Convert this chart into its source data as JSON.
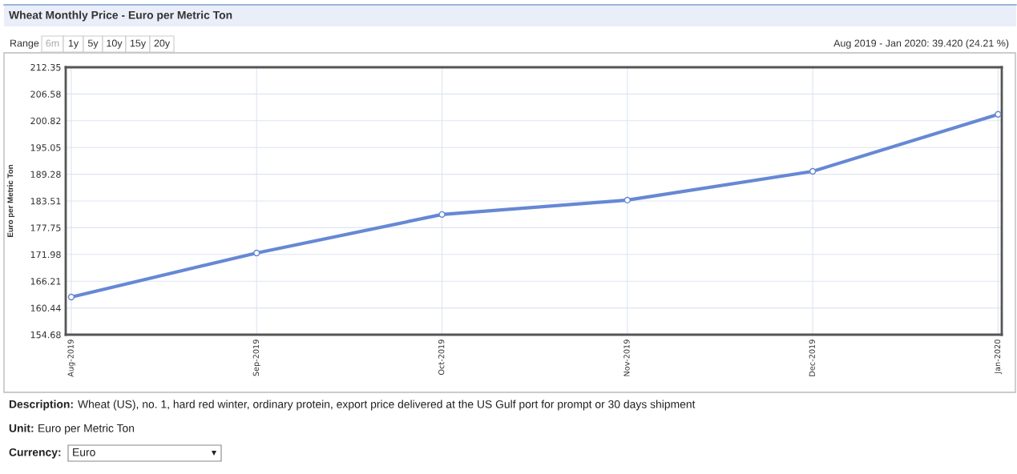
{
  "chart_data": {
    "type": "line",
    "title": "Wheat Monthly Price - Euro per Metric Ton",
    "ylabel": "Euro per Metric Ton",
    "categories": [
      "Aug-2019",
      "Sep-2019",
      "Oct-2019",
      "Nov-2019",
      "Dec-2019",
      "Jan-2020"
    ],
    "series": [
      {
        "color": "#6688d4",
        "values": [
          162.8,
          172.3,
          180.6,
          183.7,
          189.9,
          202.2
        ]
      }
    ],
    "ylim": [
      154.68,
      212.35
    ],
    "yticks": [
      154.68,
      160.44,
      166.21,
      171.98,
      177.75,
      183.51,
      189.28,
      195.05,
      200.82,
      206.58,
      212.35
    ],
    "grid": true,
    "marker": "circle",
    "line_style": "solid",
    "annotations": [
      "Range",
      "6m",
      "1y",
      "5y",
      "10y",
      "15y",
      "20y",
      "Aug 2019 - Jan 2020: 39.420 (24.21 %)",
      "Description:",
      "Wheat (US), no. 1, hard red winter, ordinary protein, export price delivered at the US Gulf port for prompt or 30 days shipment",
      "Unit:",
      "Euro per Metric Ton",
      "Currency:",
      "Euro"
    ]
  }
}
